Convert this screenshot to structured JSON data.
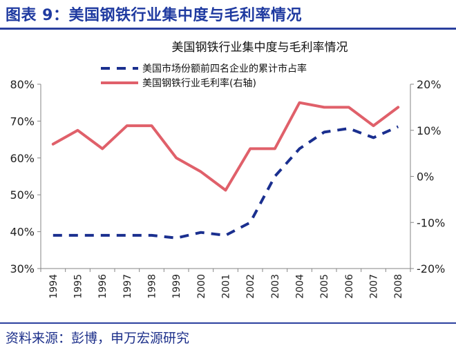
{
  "figure": {
    "label": "图表 9：美国钢铁行业集中度与毛利率情况",
    "source": "资料来源：彭博，申万宏源研究"
  },
  "chart_data": {
    "type": "line",
    "title": "美国钢铁行业集中度与毛利率情况",
    "categories": [
      "1994",
      "1995",
      "1996",
      "1997",
      "1998",
      "1999",
      "2000",
      "2001",
      "2002",
      "2003",
      "2004",
      "2005",
      "2006",
      "2007",
      "2008"
    ],
    "y_left": {
      "ticks": [
        "30%",
        "40%",
        "50%",
        "60%",
        "70%",
        "80%"
      ],
      "ylim": [
        30,
        80
      ]
    },
    "y_right": {
      "ticks": [
        "-20%",
        "-10%",
        "0%",
        "10%",
        "20%"
      ],
      "ylim": [
        -20,
        20
      ]
    },
    "grid": false,
    "legend_position": "top-right",
    "series": [
      {
        "name": "美国市场份额前四名企业的累计市占率",
        "axis": "left",
        "style": "dashed",
        "color": "#1a2f8f",
        "values": [
          39,
          39,
          39,
          39,
          39,
          38.3,
          39.8,
          39,
          42.5,
          55,
          62.5,
          67,
          68,
          65.5,
          68.5
        ]
      },
      {
        "name": "美国钢铁行业毛利率(右轴)",
        "axis": "right",
        "style": "solid",
        "color": "#e0606a",
        "values": [
          7,
          10,
          6,
          11,
          11,
          4,
          1,
          -3,
          6,
          6,
          16,
          15,
          15,
          11,
          15
        ]
      }
    ]
  }
}
